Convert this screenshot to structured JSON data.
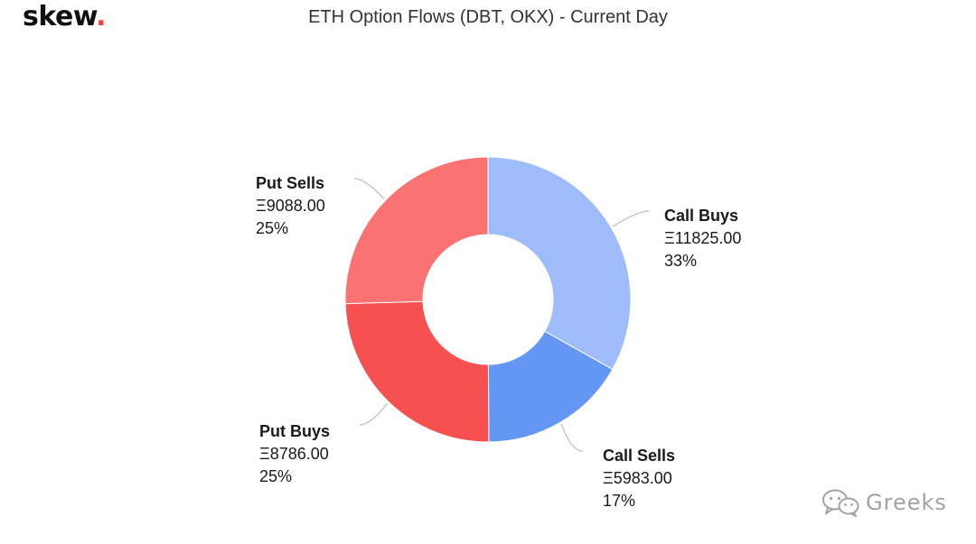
{
  "header": {
    "logo_text": "skew",
    "logo_dot": ".",
    "title": "ETH Option Flows (DBT, OKX) - Current Day"
  },
  "watermark": {
    "text": "Greeks",
    "icon": "wechat-icon"
  },
  "chart_data": {
    "type": "pie",
    "donut": true,
    "title": "ETH Option Flows (DBT, OKX) - Current Day",
    "slices": [
      {
        "label": "Call Buys",
        "value": 11825.0,
        "value_text": "Ξ11825.00",
        "percent_text": "33%",
        "color": "#9ebcfa"
      },
      {
        "label": "Call Sells",
        "value": 5983.0,
        "value_text": "Ξ5983.00",
        "percent_text": "17%",
        "color": "#6496f4"
      },
      {
        "label": "Put Buys",
        "value": 8786.0,
        "value_text": "Ξ8786.00",
        "percent_text": "25%",
        "color": "#f75050"
      },
      {
        "label": "Put Sells",
        "value": 9088.0,
        "value_text": "Ξ9088.00",
        "percent_text": "25%",
        "color": "#fa7272"
      }
    ],
    "start_angle_deg": 0,
    "direction": "clockwise",
    "label_color": "#1a1a1a",
    "connector_color": "#c8c8c8"
  }
}
